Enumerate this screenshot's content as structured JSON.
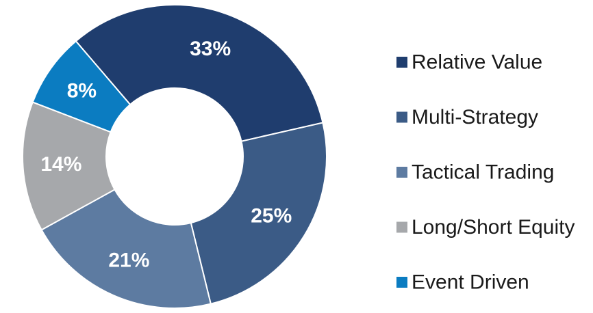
{
  "chart_data": {
    "type": "donut",
    "categories": [
      "Relative Value",
      "Multi-Strategy",
      "Tactical Trading",
      "Long/Short Equity",
      "Event Driven"
    ],
    "values": [
      33,
      25,
      21,
      14,
      8
    ],
    "value_labels": [
      "33%",
      "25%",
      "21%",
      "14%",
      "8%"
    ],
    "colors": [
      "#1f3d6e",
      "#3b5b86",
      "#5d7ba1",
      "#a6a8ab",
      "#0b7cc1"
    ],
    "legend": "right"
  }
}
